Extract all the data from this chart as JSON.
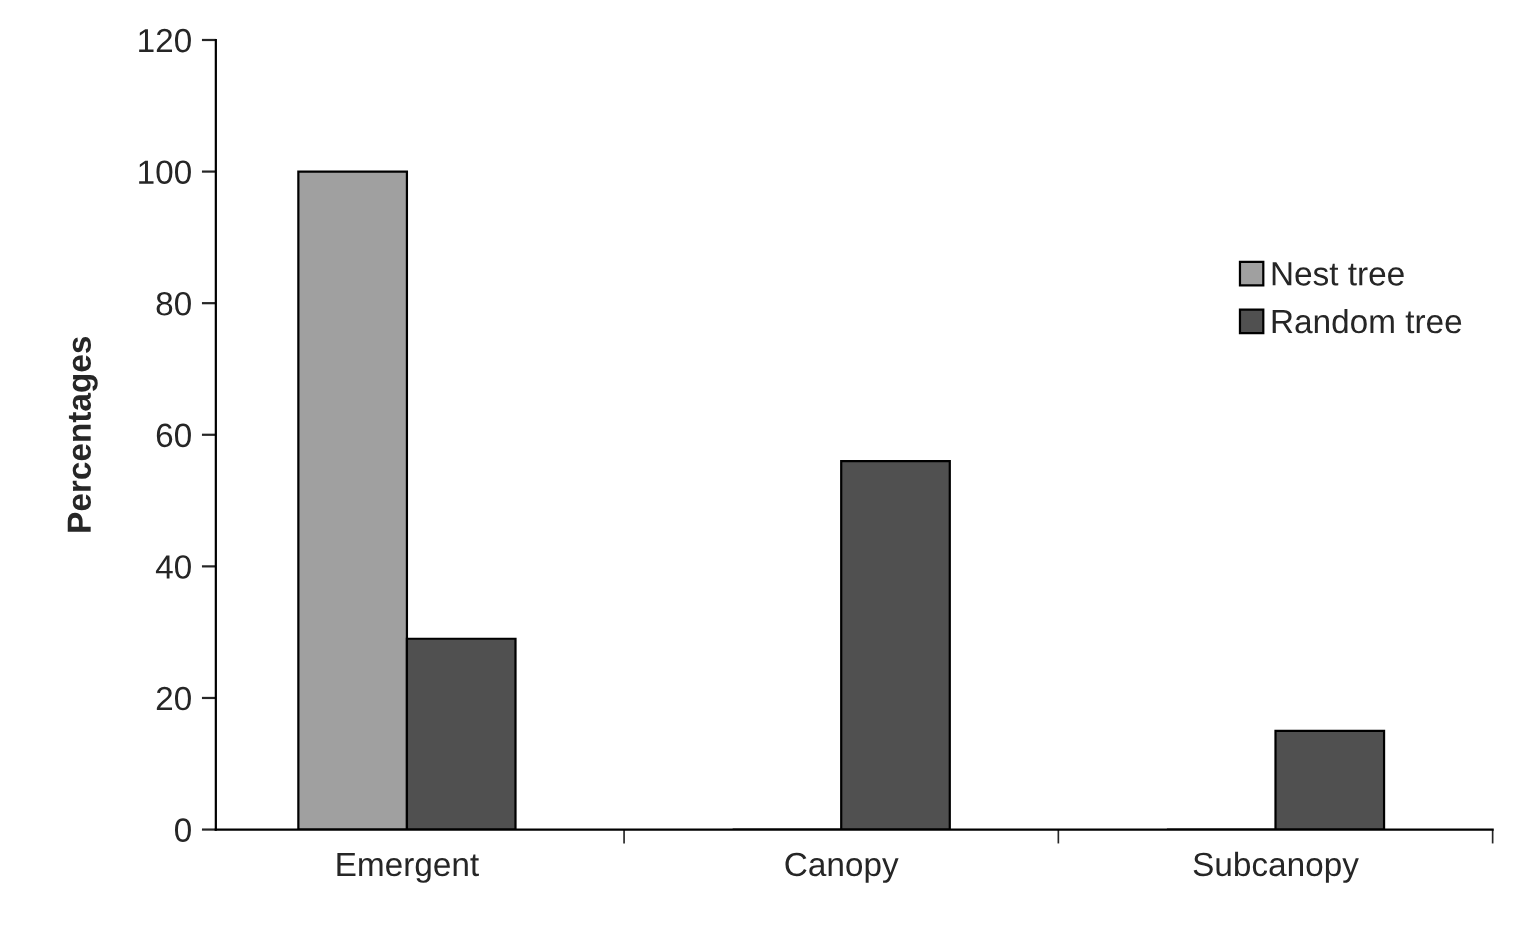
{
  "chart_data": {
    "type": "bar",
    "ylabel": "Percentages",
    "categories": [
      "Emergent",
      "Canopy",
      "Subcanopy"
    ],
    "series": [
      {
        "name": "Nest tree",
        "color": "#a0a0a0",
        "values": [
          100,
          0,
          0
        ]
      },
      {
        "name": "Random tree",
        "color": "#505050",
        "values": [
          29,
          56,
          15
        ]
      }
    ],
    "ylim": [
      0,
      120
    ],
    "yticks": [
      0,
      20,
      40,
      60,
      80,
      100,
      120
    ],
    "grid": false,
    "legend": "right"
  }
}
